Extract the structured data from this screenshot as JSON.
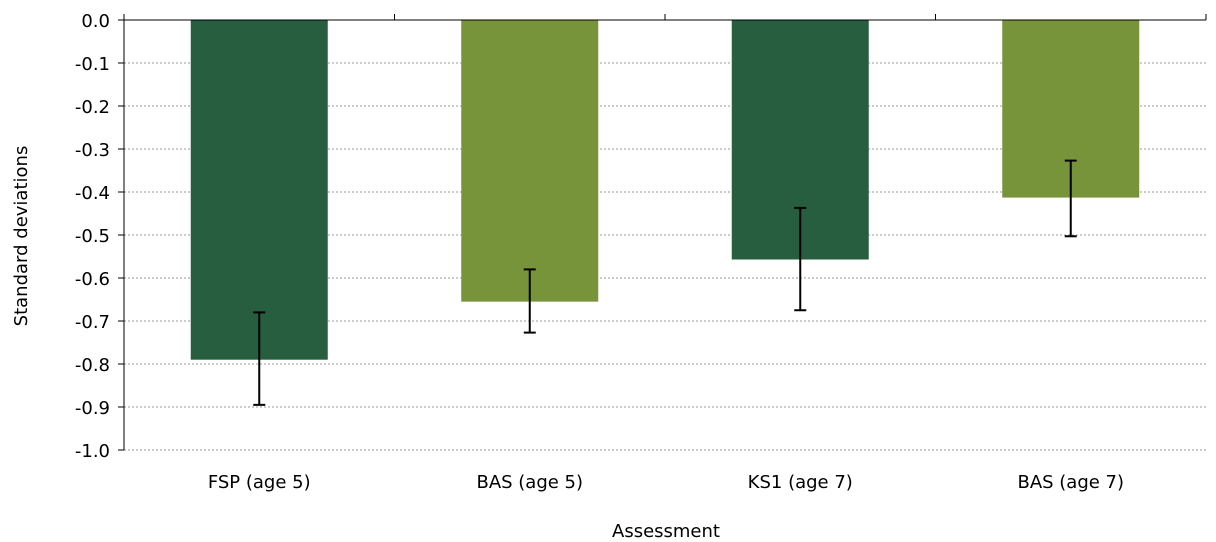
{
  "chart_data": {
    "type": "bar",
    "title": "",
    "xlabel": "Assessment",
    "ylabel": "Standard deviations",
    "categories": [
      "FSP (age 5)",
      "BAS (age 5)",
      "KS1 (age 7)",
      "BAS (age 7)"
    ],
    "values": [
      -0.79,
      -0.655,
      -0.557,
      -0.413
    ],
    "error_bars": [
      {
        "low": -0.895,
        "high": -0.68
      },
      {
        "low": -0.727,
        "high": -0.58
      },
      {
        "low": -0.675,
        "high": -0.437
      },
      {
        "low": -0.503,
        "high": -0.327
      }
    ],
    "colors": [
      "#265e3f",
      "#78943b",
      "#265e3f",
      "#78943b"
    ],
    "ylim": [
      -1.0,
      0.0
    ],
    "yticks": [
      "0.0",
      "-0.1",
      "-0.2",
      "-0.3",
      "-0.4",
      "-0.5",
      "-0.6",
      "-0.7",
      "-0.8",
      "-0.9",
      "-1.0"
    ],
    "grid": true,
    "legend": "none"
  }
}
